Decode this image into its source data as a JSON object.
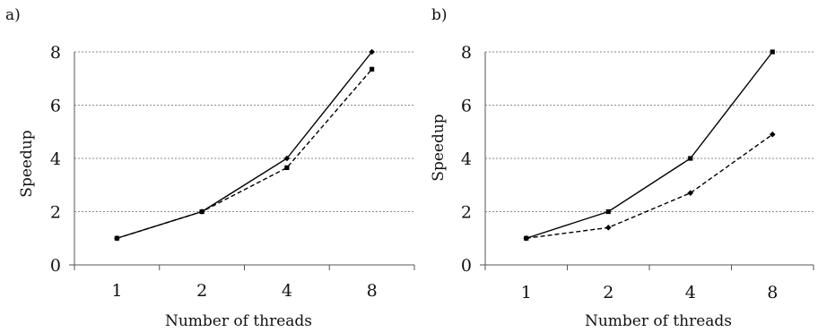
{
  "chart_data": [
    {
      "panel_label": "a)",
      "type": "line",
      "categories": [
        "1",
        "2",
        "4",
        "8"
      ],
      "xlabel": "Number of threads",
      "ylabel": "Speedup",
      "ylim": [
        0,
        8
      ],
      "yticks": [
        0,
        2,
        4,
        6,
        8
      ],
      "grid": true,
      "series": [
        {
          "values": [
            1,
            2,
            4,
            8
          ],
          "style": "solid",
          "marker": "diamond"
        },
        {
          "values": [
            1,
            2,
            3.65,
            7.35
          ],
          "style": "dashed",
          "marker": "square"
        }
      ]
    },
    {
      "panel_label": "b)",
      "type": "line",
      "categories": [
        "1",
        "2",
        "4",
        "8"
      ],
      "xlabel": "Number of threads",
      "ylabel": "Speedup",
      "ylim": [
        0,
        8
      ],
      "yticks": [
        0,
        2,
        4,
        6,
        8
      ],
      "grid": true,
      "series": [
        {
          "values": [
            1,
            2,
            4,
            8
          ],
          "style": "solid",
          "marker": "square"
        },
        {
          "values": [
            1,
            1.4,
            2.7,
            4.9
          ],
          "style": "dashed",
          "marker": "diamond"
        }
      ]
    }
  ]
}
